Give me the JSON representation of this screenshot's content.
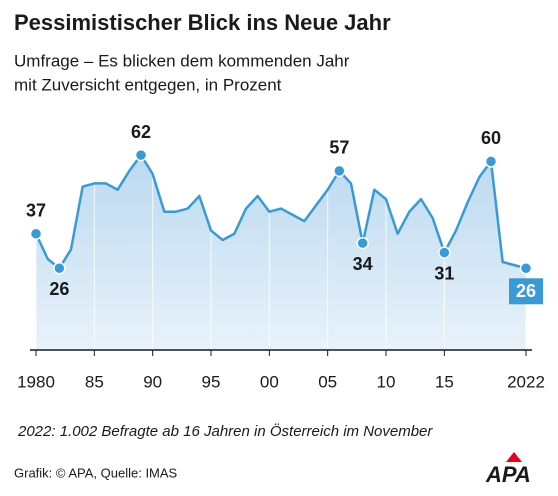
{
  "chart_data": {
    "type": "area",
    "title": "Pessimistischer Blick ins Neue Jahr",
    "subtitle": [
      "Umfrage – Es blicken dem kommenden Jahr",
      "mit Zuversicht entgegen, in Prozent"
    ],
    "x": [
      1980,
      1981,
      1982,
      1983,
      1984,
      1985,
      1986,
      1987,
      1988,
      1989,
      1990,
      1991,
      1992,
      1993,
      1994,
      1995,
      1996,
      1997,
      1998,
      1999,
      2000,
      2001,
      2002,
      2003,
      2004,
      2005,
      2006,
      2007,
      2008,
      2009,
      2010,
      2011,
      2012,
      2013,
      2014,
      2015,
      2016,
      2017,
      2018,
      2019,
      2020,
      2021,
      2022
    ],
    "values": [
      37,
      29,
      26,
      32,
      52,
      53,
      53,
      51,
      57,
      62,
      56,
      44,
      44,
      45,
      49,
      38,
      35,
      37,
      45,
      49,
      44,
      45,
      43,
      41,
      46,
      51,
      57,
      53,
      34,
      51,
      48,
      37,
      44,
      48,
      42,
      31,
      38,
      47,
      55,
      60,
      28,
      27,
      26
    ],
    "labeled_points": [
      0,
      2,
      9,
      26,
      28,
      35,
      39,
      42
    ],
    "xlim": [
      1980,
      2022
    ],
    "xticks": [
      1980,
      {
        "value": 1985,
        "label": "85"
      },
      {
        "value": 1990,
        "label": "90"
      },
      {
        "value": 1995,
        "label": "95"
      },
      {
        "value": 2000,
        "label": "00"
      },
      {
        "value": 2005,
        "label": "05"
      },
      {
        "value": 2010,
        "label": "10"
      },
      {
        "value": 2015,
        "label": "15"
      },
      2022
    ],
    "ylim": [
      0,
      70
    ],
    "color": "#3a9ad5",
    "area_color": "#cfe3f3",
    "annotation": "2022: 1.002 Befragte ab 16 Jahren in Österreich im November",
    "source": "Grafik: © APA, Quelle: IMAS",
    "logo": "APA"
  }
}
